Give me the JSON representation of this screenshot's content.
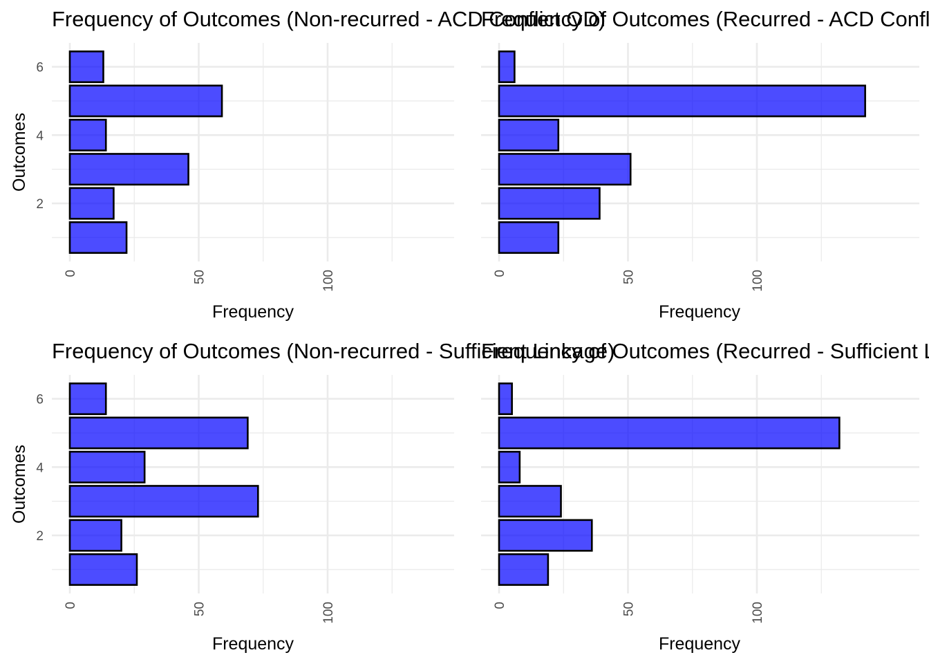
{
  "chart_data": [
    {
      "type": "bar",
      "orientation": "horizontal",
      "title": "Frequency of Outcomes (Non-recurred - ACD Conflict OD)",
      "xlabel": "Frequency",
      "ylabel": "Outcomes",
      "xlim": [
        0,
        150
      ],
      "x_ticks": [
        0,
        50,
        100
      ],
      "ylim": [
        0.3,
        6.7
      ],
      "y_ticks": [
        2,
        4,
        6
      ],
      "categories": [
        1,
        2,
        3,
        4,
        5,
        6
      ],
      "values": [
        22,
        17,
        46,
        14,
        59,
        13
      ],
      "bar_color": "#0000ff",
      "bar_opacity": 0.7,
      "grid": true
    },
    {
      "type": "bar",
      "orientation": "horizontal",
      "title": "Frequency of Outcomes (Recurred - ACD Conflict OD)",
      "xlabel": "Frequency",
      "ylabel": "",
      "xlim": [
        0,
        150
      ],
      "x_ticks": [
        0,
        50,
        100
      ],
      "ylim": [
        0.3,
        6.7
      ],
      "y_ticks": [
        2,
        4,
        6
      ],
      "categories": [
        1,
        2,
        3,
        4,
        5,
        6
      ],
      "values": [
        23,
        39,
        51,
        23,
        142,
        6
      ],
      "bar_color": "#0000ff",
      "bar_opacity": 0.7,
      "grid": true
    },
    {
      "type": "bar",
      "orientation": "horizontal",
      "title": "Frequency of Outcomes (Non-recurred - Sufficient Linkage)",
      "xlabel": "Frequency",
      "ylabel": "Outcomes",
      "xlim": [
        0,
        150
      ],
      "x_ticks": [
        0,
        50,
        100
      ],
      "ylim": [
        0.3,
        6.7
      ],
      "y_ticks": [
        2,
        4,
        6
      ],
      "categories": [
        1,
        2,
        3,
        4,
        5,
        6
      ],
      "values": [
        26,
        20,
        73,
        29,
        69,
        14
      ],
      "bar_color": "#0000ff",
      "bar_opacity": 0.7,
      "grid": true
    },
    {
      "type": "bar",
      "orientation": "horizontal",
      "title": "Frequency of Outcomes (Recurred - Sufficient Linkage)",
      "xlabel": "Frequency",
      "ylabel": "",
      "xlim": [
        0,
        150
      ],
      "x_ticks": [
        0,
        50,
        100
      ],
      "ylim": [
        0.3,
        6.7
      ],
      "y_ticks": [
        2,
        4,
        6
      ],
      "categories": [
        1,
        2,
        3,
        4,
        5,
        6
      ],
      "values": [
        19,
        36,
        24,
        8,
        132,
        5
      ],
      "bar_color": "#0000ff",
      "bar_opacity": 0.7,
      "grid": true
    }
  ]
}
